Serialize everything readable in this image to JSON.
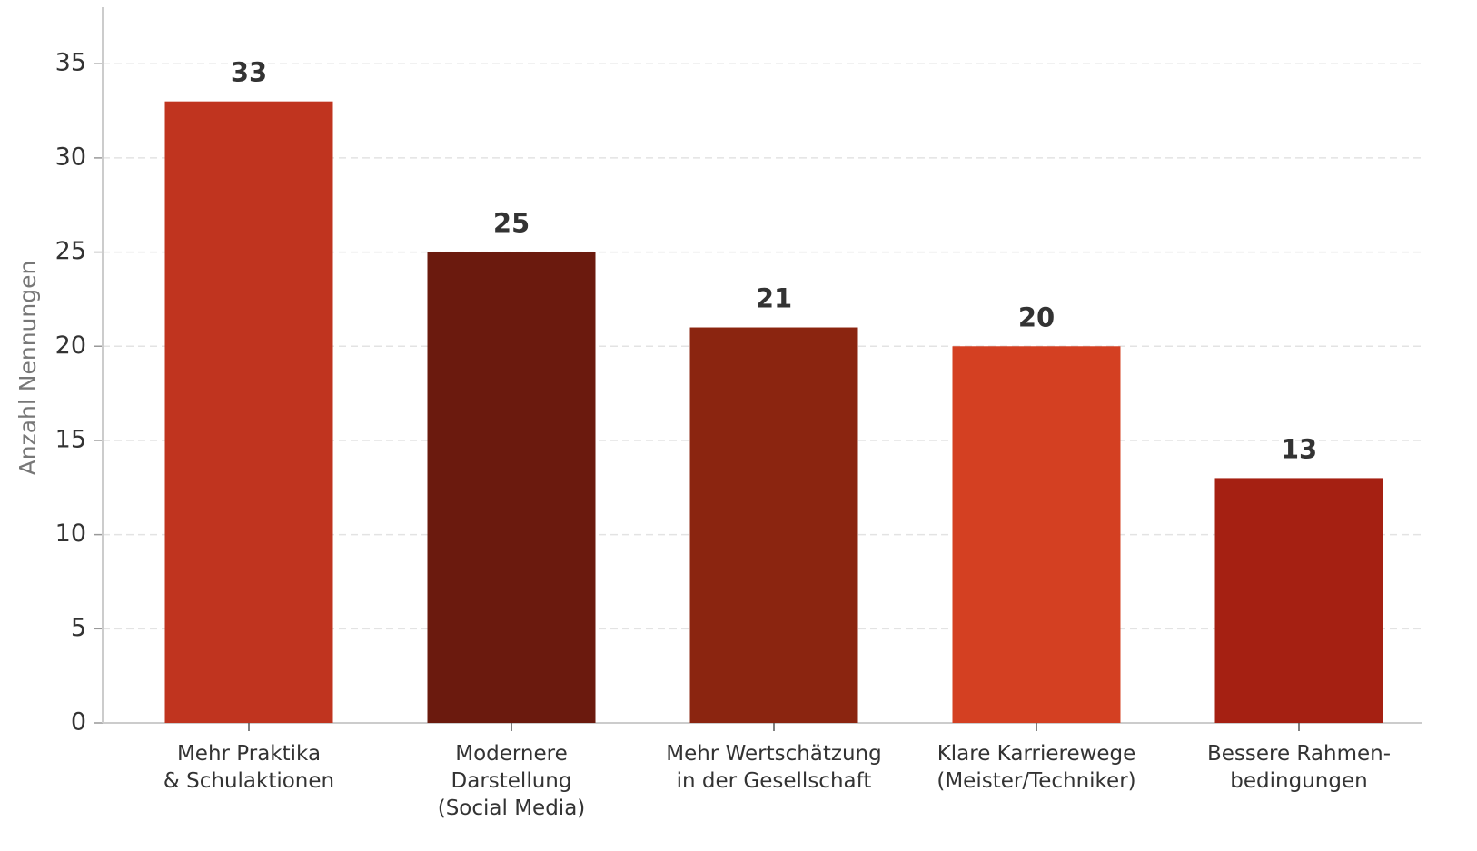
{
  "chart_data": {
    "type": "bar",
    "y_label": "Anzahl Nennungen",
    "categories": [
      "Mehr Praktika\n& Schulaktionen",
      "Modernere\nDarstellung\n(Social Media)",
      "Mehr Wertschätzung\nin der Gesellschaft",
      "Klare Karrierewege\n(Meister/Techniker)",
      "Bessere Rahmen-\nbedingungen"
    ],
    "values": [
      33,
      25,
      21,
      20,
      13
    ],
    "colors": [
      "#c0341f",
      "#6b1a0e",
      "#8b2510",
      "#d44022",
      "#a52012"
    ],
    "ylim": [
      0,
      38
    ],
    "yticks": [
      0,
      5,
      10,
      15,
      20,
      25,
      30,
      35
    ],
    "grid": true
  }
}
